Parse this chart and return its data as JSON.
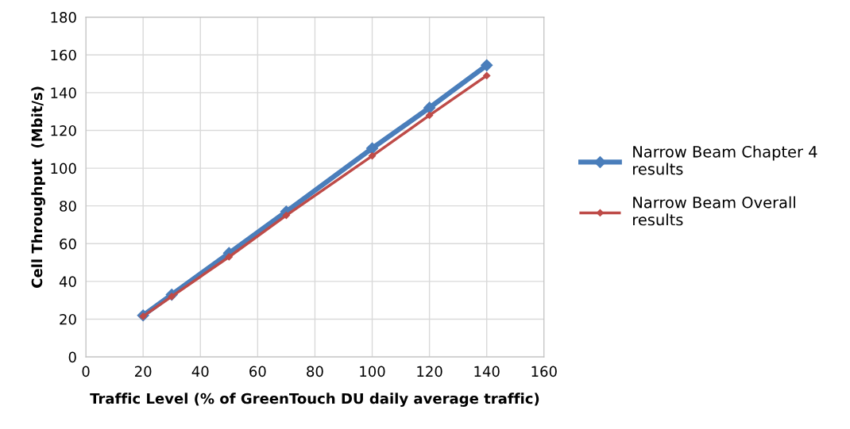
{
  "chart_data": {
    "type": "line",
    "xlabel": "Traffic Level (% of GreenTouch DU daily average traffic)",
    "ylabel": "Cell Throughput  (Mbit/s)",
    "x": [
      20,
      30,
      50,
      70,
      100,
      120,
      140
    ],
    "series": [
      {
        "name": "Narrow Beam Chapter 4 results",
        "color": "#4a7ebb",
        "values": [
          22,
          33,
          55,
          77,
          110.5,
          132,
          154.5
        ]
      },
      {
        "name": "Narrow Beam Overall results",
        "color": "#be4b48",
        "values": [
          21.5,
          32,
          53,
          75,
          106.5,
          128,
          149
        ]
      }
    ],
    "xlim": [
      0,
      160
    ],
    "xticks": [
      0,
      20,
      40,
      60,
      80,
      100,
      120,
      140,
      160
    ],
    "ylim": [
      0,
      180
    ],
    "yticks": [
      0,
      20,
      40,
      60,
      80,
      100,
      120,
      140,
      160,
      180
    ],
    "grid": true,
    "legend": "right",
    "marker": "diamond",
    "line_style": "solid"
  }
}
